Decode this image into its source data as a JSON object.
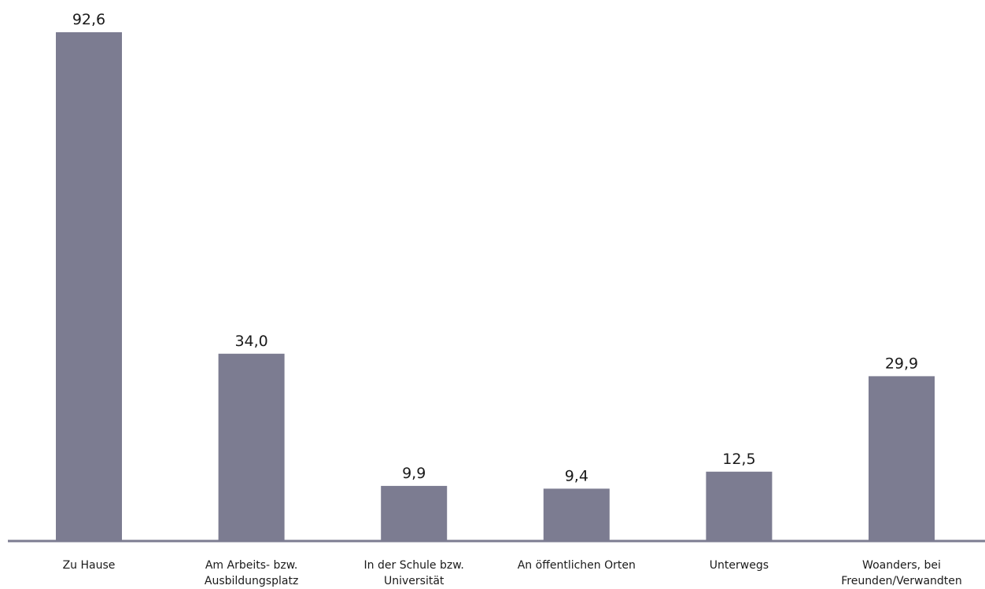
{
  "chart_data": {
    "type": "bar",
    "categories": [
      [
        "Zu Hause"
      ],
      [
        "Am Arbeits- bzw.",
        "Ausbildungsplatz"
      ],
      [
        "In der Schule bzw.",
        "Universität"
      ],
      [
        "An öffentlichen Orten"
      ],
      [
        "Unterwegs"
      ],
      [
        "Woanders, bei",
        "Freunden/Verwandten"
      ]
    ],
    "values": [
      92.6,
      34.0,
      9.9,
      9.4,
      12.5,
      29.9
    ],
    "value_labels": [
      "92,6",
      "34,0",
      "9,9",
      "9,4",
      "12,5",
      "29,9"
    ],
    "ylim": [
      0,
      92.6
    ],
    "grid": false,
    "legend": "none",
    "colors": {
      "bar": "#7c7c91",
      "axis": "#7c7c91",
      "text": "#1a1a1a"
    }
  }
}
